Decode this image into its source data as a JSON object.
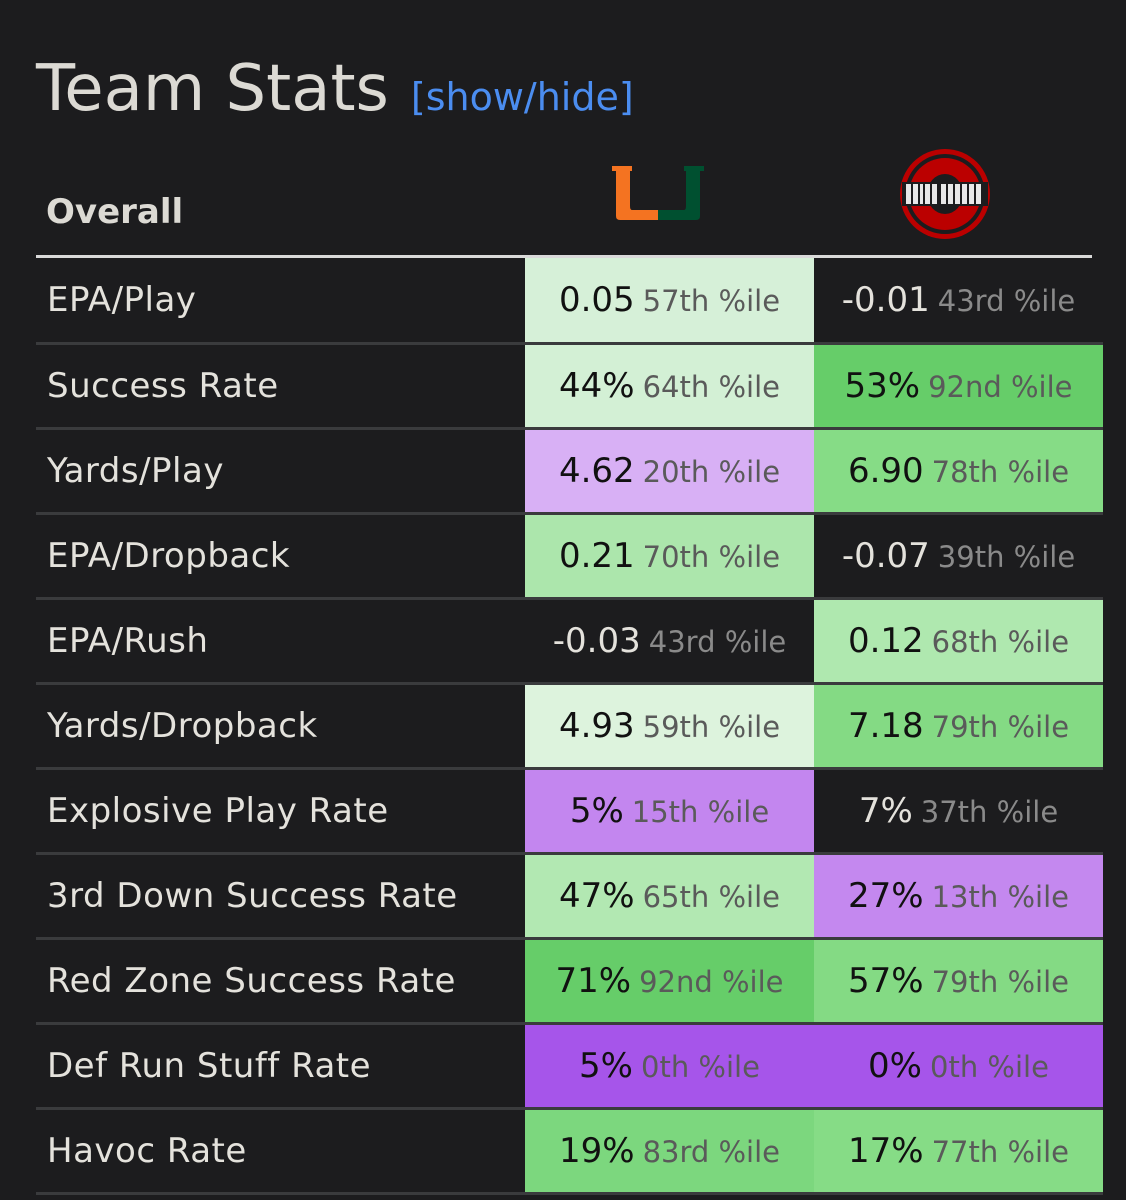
{
  "header": {
    "title": "Team Stats",
    "toggle_label": "[show/hide]"
  },
  "section": {
    "label": "Overall"
  },
  "teams": [
    {
      "logo": "miami-u-logo",
      "colors": {
        "left": "#f47321",
        "right": "#005030"
      }
    },
    {
      "logo": "ohio-state-logo",
      "colors": {
        "primary": "#bb0000",
        "secondary": "#ffffff"
      }
    }
  ],
  "rows": [
    {
      "label": "EPA/Play",
      "team1": {
        "value": "0.05",
        "pct": "57th %ile",
        "bg": "#d6f0d8",
        "dark": false
      },
      "team2": {
        "value": "-0.01",
        "pct": "43rd %ile",
        "bg": "#1c1c1e",
        "dark": true
      }
    },
    {
      "label": "Success Rate",
      "team1": {
        "value": "44%",
        "pct": "64th %ile",
        "bg": "#d3f0d5",
        "dark": false
      },
      "team2": {
        "value": "53%",
        "pct": "92nd %ile",
        "bg": "#66cd69",
        "dark": false
      }
    },
    {
      "label": "Yards/Play",
      "team1": {
        "value": "4.62",
        "pct": "20th %ile",
        "bg": "#d8b0f5",
        "dark": false
      },
      "team2": {
        "value": "6.90",
        "pct": "78th %ile",
        "bg": "#86dc86",
        "dark": false
      }
    },
    {
      "label": "EPA/Dropback",
      "team1": {
        "value": "0.21",
        "pct": "70th %ile",
        "bg": "#ace6ac",
        "dark": false
      },
      "team2": {
        "value": "-0.07",
        "pct": "39th %ile",
        "bg": "#1c1c1e",
        "dark": true
      }
    },
    {
      "label": "EPA/Rush",
      "team1": {
        "value": "-0.03",
        "pct": "43rd %ile",
        "bg": "#1c1c1e",
        "dark": true
      },
      "team2": {
        "value": "0.12",
        "pct": "68th %ile",
        "bg": "#afe8af",
        "dark": false
      }
    },
    {
      "label": "Yards/Dropback",
      "team1": {
        "value": "4.93",
        "pct": "59th %ile",
        "bg": "#ddf3dd",
        "dark": false
      },
      "team2": {
        "value": "7.18",
        "pct": "79th %ile",
        "bg": "#84da84",
        "dark": false
      }
    },
    {
      "label": "Explosive Play Rate",
      "team1": {
        "value": "5%",
        "pct": "15th %ile",
        "bg": "#c386ef",
        "dark": false
      },
      "team2": {
        "value": "7%",
        "pct": "37th %ile",
        "bg": "#1c1c1e",
        "dark": true
      }
    },
    {
      "label": "3rd Down Success Rate",
      "team1": {
        "value": "47%",
        "pct": "65th %ile",
        "bg": "#b2e8b2",
        "dark": false
      },
      "team2": {
        "value": "27%",
        "pct": "13th %ile",
        "bg": "#c488ef",
        "dark": false
      }
    },
    {
      "label": "Red Zone Success Rate",
      "team1": {
        "value": "71%",
        "pct": "92nd %ile",
        "bg": "#66cd69",
        "dark": false
      },
      "team2": {
        "value": "57%",
        "pct": "79th %ile",
        "bg": "#84da84",
        "dark": false
      }
    },
    {
      "label": "Def Run Stuff Rate",
      "team1": {
        "value": "5%",
        "pct": "0th %ile",
        "bg": "#a655ea",
        "dark": false
      },
      "team2": {
        "value": "0%",
        "pct": "0th %ile",
        "bg": "#a655ea",
        "dark": false
      }
    },
    {
      "label": "Havoc Rate",
      "team1": {
        "value": "19%",
        "pct": "83rd %ile",
        "bg": "#7cd77e",
        "dark": false
      },
      "team2": {
        "value": "17%",
        "pct": "77th %ile",
        "bg": "#86dc86",
        "dark": false
      }
    }
  ]
}
